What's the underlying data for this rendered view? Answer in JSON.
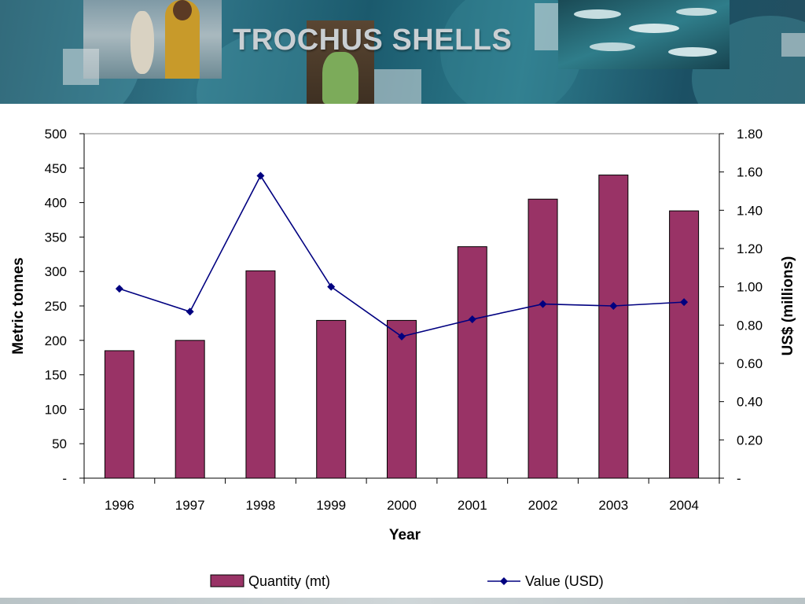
{
  "slide": {
    "title": "TROCHUS SHELLS"
  },
  "chart_data": {
    "type": "bar",
    "categories": [
      "1996",
      "1997",
      "1998",
      "1999",
      "2000",
      "2001",
      "2002",
      "2003",
      "2004"
    ],
    "series": [
      {
        "name": "Quantity (mt)",
        "type": "bar",
        "axis": "left",
        "color": "#993366",
        "values": [
          185,
          200,
          301,
          229,
          229,
          336,
          405,
          440,
          388
        ]
      },
      {
        "name": "Value (USD)",
        "type": "line",
        "axis": "right",
        "color": "#000080",
        "marker": "diamond",
        "values": [
          0.99,
          0.87,
          1.58,
          1.0,
          0.74,
          0.83,
          0.91,
          0.9,
          0.92
        ]
      }
    ],
    "xlabel": "Year",
    "ylabel": "Metric tonnes",
    "y2label": "US$ (millions)",
    "ylim": [
      0,
      500
    ],
    "y2lim": [
      0,
      1.8
    ],
    "yticks": [
      "-",
      "50",
      "100",
      "150",
      "200",
      "250",
      "300",
      "350",
      "400",
      "450",
      "500"
    ],
    "y2ticks": [
      "-",
      "0.20",
      "0.40",
      "0.60",
      "0.80",
      "1.00",
      "1.20",
      "1.40",
      "1.60",
      "1.80"
    ],
    "grid": false,
    "legend_position": "bottom"
  }
}
